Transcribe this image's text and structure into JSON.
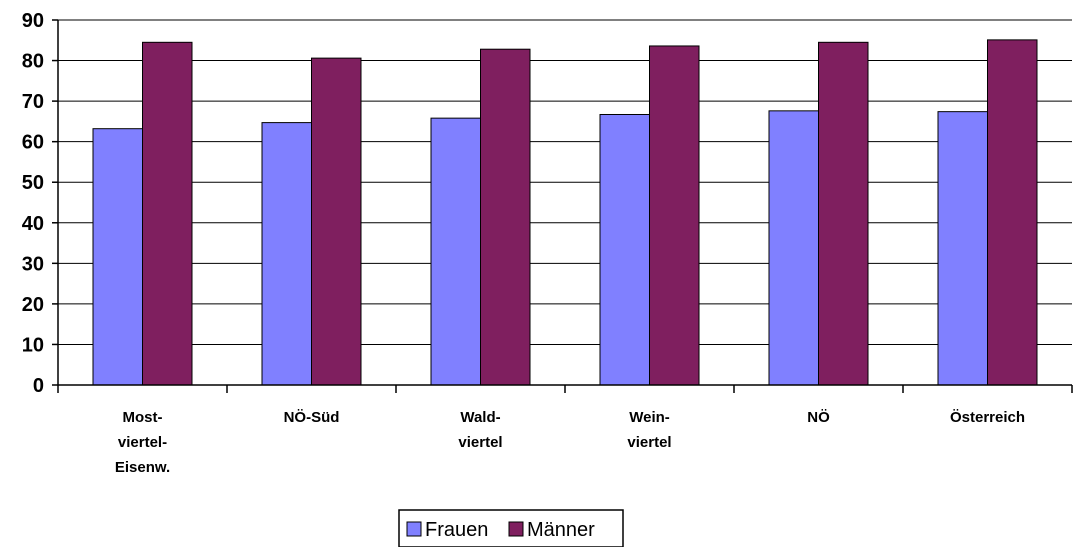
{
  "chart_data": {
    "type": "bar",
    "title": "",
    "xlabel": "",
    "ylabel": "",
    "categories": [
      [
        "Most-",
        "viertel-",
        "Eisenw."
      ],
      [
        "NÖ-Süd"
      ],
      [
        "Wald-",
        "viertel"
      ],
      [
        "Wein-",
        "viertel"
      ],
      [
        "NÖ"
      ],
      [
        "Österreich"
      ]
    ],
    "series": [
      {
        "name": "Frauen",
        "color": "#8080ff",
        "values": [
          63.2,
          64.7,
          65.8,
          66.7,
          67.6,
          67.4
        ]
      },
      {
        "name": "Männer",
        "color": "#7f1f5f",
        "values": [
          84.5,
          80.6,
          82.8,
          83.6,
          84.5,
          85.1
        ]
      }
    ],
    "ylim": [
      0,
      90
    ],
    "yticks": [
      0,
      10,
      20,
      30,
      40,
      50,
      60,
      70,
      80,
      90
    ],
    "grid": true,
    "legend": "bottom-center"
  }
}
